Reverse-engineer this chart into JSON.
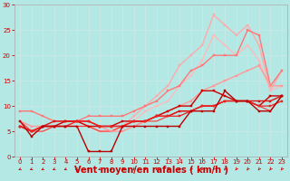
{
  "bg_color": "#b3e8e5",
  "grid_color": "#d0f0f0",
  "xlabel": "Vent moyen/en rafales ( km/h )",
  "xlabel_color": "#cc0000",
  "xlabel_fontsize": 7,
  "tick_color": "#cc0000",
  "xlim": [
    -0.5,
    23.5
  ],
  "ylim": [
    0,
    30
  ],
  "yticks": [
    0,
    5,
    10,
    15,
    20,
    25,
    30
  ],
  "xticks": [
    0,
    1,
    2,
    3,
    4,
    5,
    6,
    7,
    8,
    9,
    10,
    11,
    12,
    13,
    14,
    15,
    16,
    17,
    18,
    19,
    20,
    21,
    22,
    23
  ],
  "series": [
    {
      "x": [
        0,
        1,
        2,
        3,
        4,
        5,
        6,
        7,
        8,
        9,
        10,
        11,
        12,
        13,
        14,
        15,
        16,
        17,
        18,
        19,
        20,
        21,
        22,
        23
      ],
      "y": [
        7,
        4,
        6,
        6,
        6,
        6,
        1,
        1,
        1,
        6,
        6,
        6,
        6,
        6,
        6,
        9,
        9,
        9,
        13,
        11,
        11,
        9,
        9,
        12
      ],
      "color": "#bb0000",
      "lw": 1.0,
      "marker": "s",
      "ms": 1.8,
      "zorder": 5
    },
    {
      "x": [
        0,
        1,
        2,
        3,
        4,
        5,
        6,
        7,
        8,
        9,
        10,
        11,
        12,
        13,
        14,
        15,
        16,
        17,
        18,
        19,
        20,
        21,
        22,
        23
      ],
      "y": [
        6,
        5,
        6,
        6,
        7,
        7,
        6,
        6,
        6,
        7,
        7,
        7,
        8,
        9,
        10,
        10,
        13,
        13,
        12,
        11,
        11,
        10,
        12,
        12
      ],
      "color": "#cc0000",
      "lw": 1.0,
      "marker": "s",
      "ms": 1.8,
      "zorder": 4
    },
    {
      "x": [
        0,
        1,
        2,
        3,
        4,
        5,
        6,
        7,
        8,
        9,
        10,
        11,
        12,
        13,
        14,
        15,
        16,
        17,
        18,
        19,
        20,
        21,
        22,
        23
      ],
      "y": [
        6,
        5,
        6,
        7,
        7,
        7,
        7,
        6,
        6,
        6,
        7,
        7,
        8,
        8,
        9,
        9,
        10,
        10,
        11,
        11,
        11,
        11,
        11,
        12
      ],
      "color": "#dd1111",
      "lw": 1.0,
      "marker": "s",
      "ms": 1.8,
      "zorder": 4
    },
    {
      "x": [
        0,
        1,
        2,
        3,
        4,
        5,
        6,
        7,
        8,
        9,
        10,
        11,
        12,
        13,
        14,
        15,
        16,
        17,
        18,
        19,
        20,
        21,
        22,
        23
      ],
      "y": [
        6,
        5,
        6,
        6,
        6,
        7,
        7,
        6,
        6,
        6,
        7,
        7,
        8,
        8,
        8,
        9,
        10,
        10,
        11,
        11,
        11,
        10,
        10,
        11
      ],
      "color": "#ee2222",
      "lw": 0.9,
      "marker": "s",
      "ms": 1.5,
      "zorder": 4
    },
    {
      "x": [
        0,
        1,
        2,
        3,
        4,
        5,
        6,
        7,
        8,
        9,
        10,
        11,
        12,
        13,
        14,
        15,
        16,
        17,
        18,
        19,
        20,
        21,
        22,
        23
      ],
      "y": [
        7,
        5,
        5,
        6,
        6,
        6,
        6,
        5,
        5,
        6,
        6,
        7,
        7,
        8,
        9,
        9,
        10,
        10,
        11,
        11,
        11,
        10,
        9,
        12
      ],
      "color": "#ff3333",
      "lw": 0.8,
      "marker": null,
      "ms": 0,
      "zorder": 3
    },
    {
      "x": [
        0,
        1,
        2,
        3,
        4,
        5,
        6,
        7,
        8,
        9,
        10,
        11,
        12,
        13,
        14,
        15,
        16,
        17,
        18,
        19,
        20,
        21,
        22,
        23
      ],
      "y": [
        9,
        9,
        8,
        7,
        7,
        7,
        8,
        8,
        8,
        8,
        9,
        10,
        11,
        13,
        14,
        17,
        18,
        20,
        20,
        20,
        25,
        24,
        14,
        17
      ],
      "color": "#ff7777",
      "lw": 1.0,
      "marker": "s",
      "ms": 1.8,
      "zorder": 3
    },
    {
      "x": [
        0,
        1,
        2,
        3,
        4,
        5,
        6,
        7,
        8,
        9,
        10,
        11,
        12,
        13,
        14,
        15,
        16,
        17,
        18,
        19,
        20,
        21,
        22,
        23
      ],
      "y": [
        7,
        6,
        6,
        6,
        6,
        7,
        7,
        6,
        5,
        5,
        6,
        7,
        8,
        9,
        10,
        11,
        13,
        14,
        15,
        16,
        17,
        18,
        14,
        14
      ],
      "color": "#ff9999",
      "lw": 1.0,
      "marker": "s",
      "ms": 1.8,
      "zorder": 3
    },
    {
      "x": [
        0,
        1,
        2,
        3,
        4,
        5,
        6,
        7,
        8,
        9,
        10,
        11,
        12,
        13,
        14,
        15,
        16,
        17,
        18,
        19,
        20,
        21,
        22,
        23
      ],
      "y": [
        7,
        5,
        6,
        6,
        7,
        7,
        6,
        5,
        5,
        6,
        8,
        10,
        12,
        14,
        18,
        20,
        22,
        28,
        26,
        24,
        26,
        22,
        13,
        17
      ],
      "color": "#ffaaaa",
      "lw": 1.0,
      "marker": "s",
      "ms": 1.8,
      "zorder": 2
    },
    {
      "x": [
        0,
        1,
        2,
        3,
        4,
        5,
        6,
        7,
        8,
        9,
        10,
        11,
        12,
        13,
        14,
        15,
        16,
        17,
        18,
        19,
        20,
        21,
        22,
        23
      ],
      "y": [
        6,
        5,
        6,
        6,
        6,
        6,
        6,
        5,
        5,
        6,
        7,
        9,
        10,
        11,
        14,
        16,
        19,
        24,
        22,
        20,
        22,
        19,
        13,
        14
      ],
      "color": "#ffbbbb",
      "lw": 1.0,
      "marker": "s",
      "ms": 1.8,
      "zorder": 2
    }
  ],
  "arrow_angles": [
    225,
    225,
    225,
    225,
    225,
    225,
    315,
    225,
    225,
    200,
    200,
    200,
    200,
    200,
    200,
    200,
    200,
    200,
    200,
    200,
    200,
    200,
    200,
    200
  ],
  "arrow_color": "#cc0000"
}
